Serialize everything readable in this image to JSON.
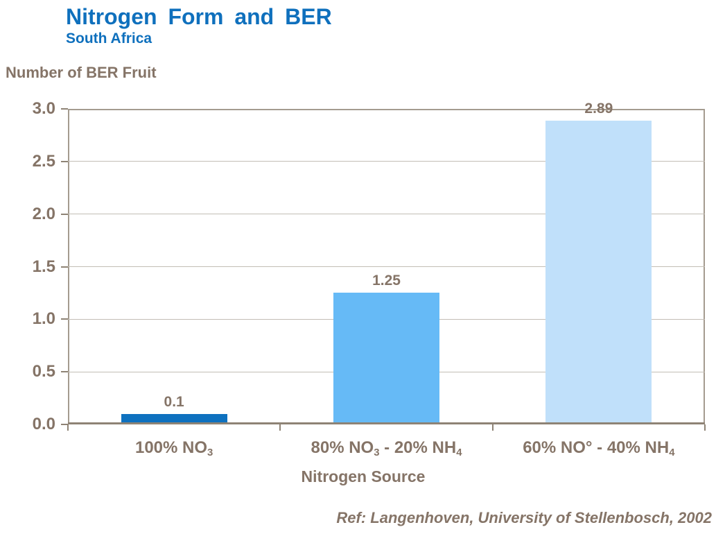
{
  "reference": "Ref: Langenhoven, University of Stellenbosch, 2002",
  "theme": {
    "background": "#ffffff",
    "title_color": "#0f70bd",
    "text_color": "#857467",
    "frame_color": "#a49b8f",
    "axis_color": "#8e8375",
    "grid_color": "#c2bdb5"
  },
  "chart_data": {
    "type": "bar",
    "title": "Nitrogen Form and BER",
    "subtitle": "South Africa",
    "ylabel": "Number of BER Fruit",
    "xlabel": "Nitrogen Source",
    "categories": [
      {
        "text": "100% NO3",
        "segments": [
          {
            "t": "100% NO"
          },
          {
            "t": "3",
            "sub": true
          }
        ]
      },
      {
        "text": "80% NO3 - 20% NH4",
        "segments": [
          {
            "t": "80% NO"
          },
          {
            "t": "3",
            "sub": true
          },
          {
            "t": " - 20% NH"
          },
          {
            "t": "4",
            "sub": true
          }
        ]
      },
      {
        "text": "60% NO° - 40% NH4",
        "segments": [
          {
            "t": "60% NO° - 40% NH"
          },
          {
            "t": "4",
            "sub": true
          }
        ]
      }
    ],
    "values": [
      0.1,
      1.25,
      2.89
    ],
    "value_labels": [
      "0.1",
      "1.25",
      "2.89"
    ],
    "bar_colors": [
      "#0e71bf",
      "#66baf6",
      "#c0e0fa"
    ],
    "ylim": [
      0,
      3
    ],
    "yticks": [
      "0.0",
      "0.5",
      "1.0",
      "1.5",
      "2.0",
      "2.5",
      "3.0"
    ],
    "grid": "horizontal",
    "legend": "none"
  }
}
